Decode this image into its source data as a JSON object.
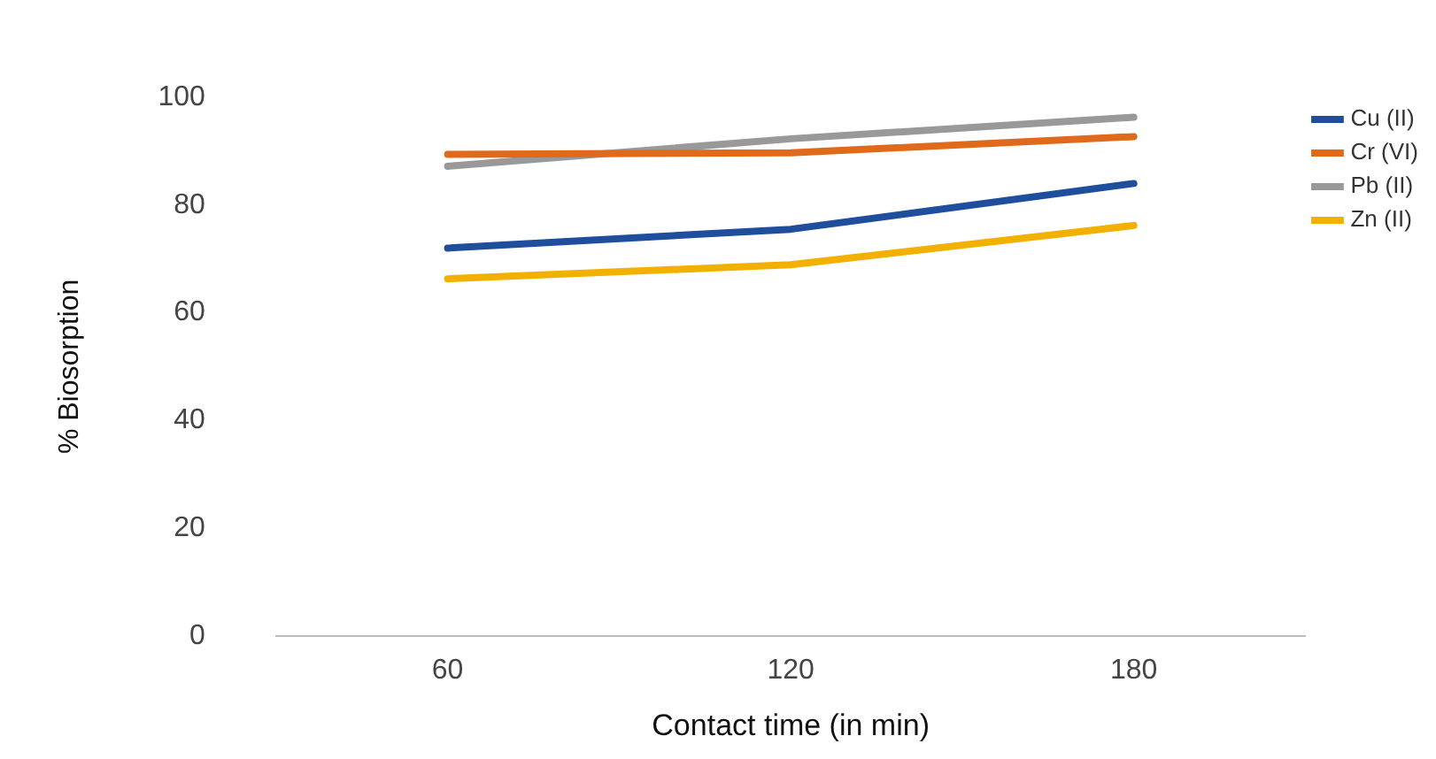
{
  "chart_data": {
    "type": "line",
    "xlabel": "Contact time (in min)",
    "ylabel": "% Biosorption",
    "categories": [
      "60",
      "120",
      "180"
    ],
    "ylim": [
      0,
      100
    ],
    "yticks": [
      0,
      20,
      40,
      60,
      80,
      100
    ],
    "grid": false,
    "legend": "top right",
    "marker": "none",
    "line_style": "solid",
    "series": [
      {
        "name": "Cu (II)",
        "color": "#1f4e9c",
        "values": [
          72,
          75.5,
          84
        ]
      },
      {
        "name": "Cr (VI)",
        "color": "#e06a1b",
        "values": [
          89.4,
          89.7,
          92.7
        ]
      },
      {
        "name": "Pb (II)",
        "color": "#999999",
        "values": [
          87.2,
          92.3,
          96.3
        ]
      },
      {
        "name": "Zn (II)",
        "color": "#f2b000",
        "values": [
          66.3,
          68.9,
          76.2
        ]
      }
    ]
  }
}
